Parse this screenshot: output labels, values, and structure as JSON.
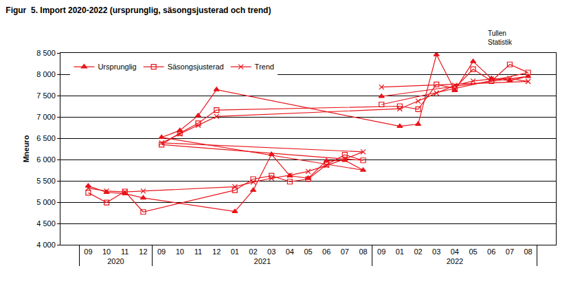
{
  "chart_data": {
    "type": "line",
    "title": "Figur  5. Import 2020-2022 (ursprunglig, säsongsjusterad och trend)",
    "annotations": [
      "Tullen",
      "Statistik"
    ],
    "y_label": "Mneuro",
    "categories": [
      [
        "2020",
        "09"
      ],
      [
        "2020",
        "10"
      ],
      [
        "2020",
        "11"
      ],
      [
        "2020",
        "12"
      ],
      [
        "2021",
        "01"
      ],
      [
        "2021",
        "02"
      ],
      [
        "2021",
        "03"
      ],
      [
        "2021",
        "04"
      ],
      [
        "2021",
        "05"
      ],
      [
        "2021",
        "06"
      ],
      [
        "2021",
        "07"
      ],
      [
        "2021",
        "08"
      ],
      [
        "2021",
        "09"
      ],
      [
        "2021",
        "10"
      ],
      [
        "2021",
        "11"
      ],
      [
        "2021",
        "12"
      ],
      [
        "2022",
        "01"
      ],
      [
        "2022",
        "02"
      ],
      [
        "2022",
        "03"
      ],
      [
        "2022",
        "04"
      ],
      [
        "2022",
        "05"
      ],
      [
        "2022",
        "06"
      ],
      [
        "2022",
        "07"
      ],
      [
        "2022",
        "08"
      ],
      [
        "2022",
        "09"
      ]
    ],
    "series": [
      {
        "name": "Ursprunglig",
        "color": "#e8141a",
        "marker": "triangle-up",
        "line_style": "solid",
        "values": [
          5380,
          5230,
          5200,
          5100,
          4780,
          5280,
          6120,
          5620,
          5560,
          5970,
          5980,
          5750,
          6520,
          6680,
          7030,
          7640,
          6780,
          6830,
          8460,
          7620,
          8300,
          7900,
          7850,
          7950,
          7480
        ]
      },
      {
        "name": "Säsongsjusterad",
        "color": "#e8141a",
        "marker": "square-open",
        "line_style": "solid",
        "values": [
          5220,
          4990,
          5250,
          4770,
          5280,
          5540,
          5620,
          5480,
          5540,
          5880,
          6110,
          5980,
          6350,
          6620,
          6850,
          7160,
          7250,
          7180,
          7760,
          7670,
          8120,
          7840,
          8230,
          8040,
          7290
        ]
      },
      {
        "name": "Trend",
        "color": "#e8141a",
        "marker": "x-thin-open",
        "line_style": "solid",
        "values": [
          5330,
          5260,
          5240,
          5260,
          5360,
          5470,
          5560,
          5630,
          5720,
          5860,
          6010,
          6180,
          6390,
          6600,
          6800,
          7010,
          7190,
          7370,
          7560,
          7740,
          7840,
          7890,
          7900,
          7830,
          7700
        ]
      }
    ],
    "ylim": [
      4000,
      8500
    ],
    "yticks": [
      {
        "value": 4000,
        "label": "4 000"
      },
      {
        "value": 4500,
        "label": "4 500"
      },
      {
        "value": 5000,
        "label": "5 000"
      },
      {
        "value": 5500,
        "label": "5 500"
      },
      {
        "value": 6000,
        "label": "6 000"
      },
      {
        "value": 6500,
        "label": "6 500"
      },
      {
        "value": 7000,
        "label": "7 000"
      },
      {
        "value": 7500,
        "label": "7 500"
      },
      {
        "value": 8000,
        "label": "8 000"
      },
      {
        "value": 8500,
        "label": "8 500"
      }
    ],
    "grid": true,
    "legend": "top-left"
  }
}
